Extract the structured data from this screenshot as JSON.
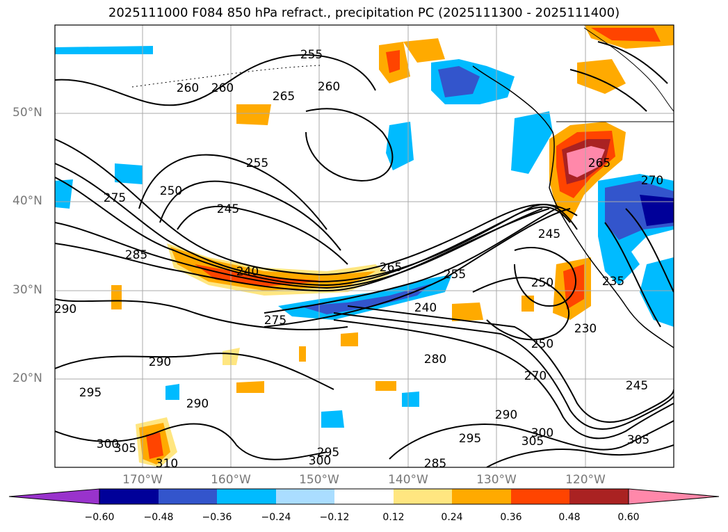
{
  "title": "2025111000 F084 850 hPa refract., precipitation PC (2025111300 - 2025111400)",
  "lat_labels": [
    "50°N",
    "40°N",
    "30°N",
    "20°N"
  ],
  "lon_labels": [
    "170°W",
    "160°W",
    "150°W",
    "140°W",
    "130°W",
    "120°W"
  ],
  "colorbar": {
    "ticks": [
      "−0.60",
      "−0.48",
      "−0.36",
      "−0.24",
      "−0.12",
      "0.12",
      "0.24",
      "0.36",
      "0.48",
      "0.60"
    ],
    "colors": [
      "#9933cc",
      "#000099",
      "#3355cc",
      "#00bbff",
      "#aaddff",
      "#ffffff",
      "#ffe680",
      "#ffaa00",
      "#ff4400",
      "#aa2222",
      "#ff88aa"
    ]
  },
  "contour_labels": [
    "255",
    "260",
    "265",
    "260",
    "255",
    "250",
    "245",
    "240",
    "275",
    "285",
    "290",
    "290",
    "295",
    "290",
    "300",
    "305",
    "310",
    "300",
    "295",
    "275",
    "265",
    "255",
    "240",
    "250",
    "245",
    "230",
    "235",
    "260",
    "265",
    "270",
    "280",
    "250",
    "245",
    "300",
    "305",
    "290",
    "285",
    "295",
    "270",
    "305"
  ],
  "map": {
    "fill_colors": {
      "neg_light": "#aaddff",
      "neg_mid": "#00bbff",
      "neg_dark": "#3355cc",
      "neg_vdark": "#000099",
      "pos_light": "#ffe680",
      "pos_mid": "#ffaa00",
      "pos_dark": "#ff4400",
      "pos_vdark": "#aa2222",
      "pos_max": "#ff88aa"
    }
  }
}
